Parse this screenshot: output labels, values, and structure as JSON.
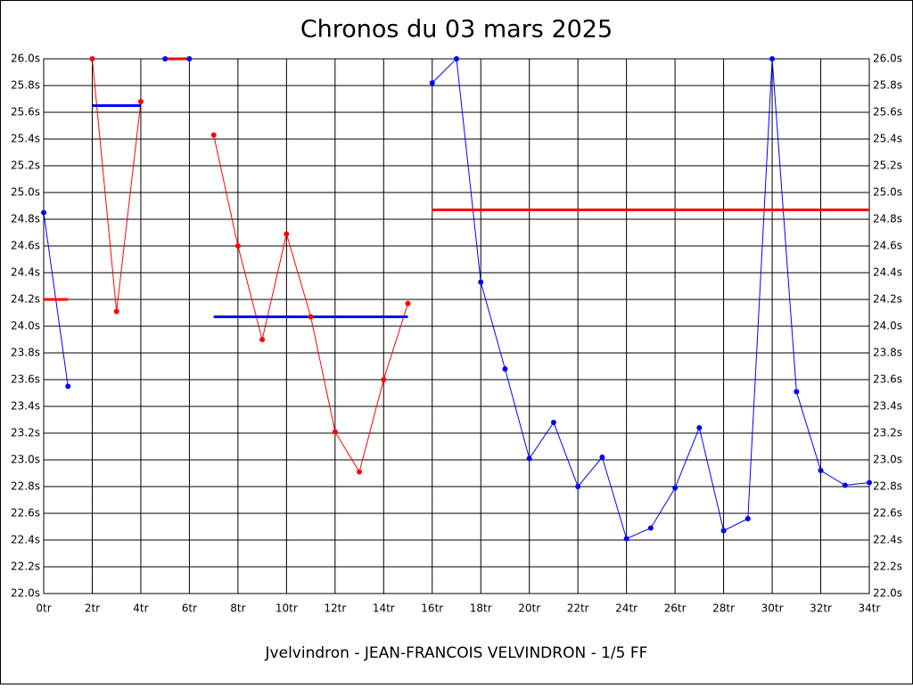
{
  "chart_data": {
    "type": "line",
    "title": "Chronos du 03 mars 2025",
    "xlabel": "Jvelvindron - JEAN-FRANCOIS VELVINDRON - 1/5 FF",
    "xlim": [
      0,
      34
    ],
    "ylim": [
      22.0,
      26.0
    ],
    "grid": true,
    "xticks": [
      {
        "value": 0,
        "label": "0tr"
      },
      {
        "value": 2,
        "label": "2tr"
      },
      {
        "value": 4,
        "label": "4tr"
      },
      {
        "value": 6,
        "label": "6tr"
      },
      {
        "value": 8,
        "label": "8tr"
      },
      {
        "value": 10,
        "label": "10tr"
      },
      {
        "value": 12,
        "label": "12tr"
      },
      {
        "value": 14,
        "label": "14tr"
      },
      {
        "value": 16,
        "label": "16tr"
      },
      {
        "value": 18,
        "label": "18tr"
      },
      {
        "value": 20,
        "label": "20tr"
      },
      {
        "value": 22,
        "label": "22tr"
      },
      {
        "value": 24,
        "label": "24tr"
      },
      {
        "value": 26,
        "label": "26tr"
      },
      {
        "value": 28,
        "label": "28tr"
      },
      {
        "value": 30,
        "label": "30tr"
      },
      {
        "value": 32,
        "label": "32tr"
      },
      {
        "value": 34,
        "label": "34tr"
      }
    ],
    "yticks": [
      {
        "value": 22.0,
        "label": "22.0s"
      },
      {
        "value": 22.2,
        "label": "22.2s"
      },
      {
        "value": 22.4,
        "label": "22.4s"
      },
      {
        "value": 22.6,
        "label": "22.6s"
      },
      {
        "value": 22.8,
        "label": "22.8s"
      },
      {
        "value": 23.0,
        "label": "23.0s"
      },
      {
        "value": 23.2,
        "label": "23.2s"
      },
      {
        "value": 23.4,
        "label": "23.4s"
      },
      {
        "value": 23.6,
        "label": "23.6s"
      },
      {
        "value": 23.8,
        "label": "23.8s"
      },
      {
        "value": 24.0,
        "label": "24.0s"
      },
      {
        "value": 24.2,
        "label": "24.2s"
      },
      {
        "value": 24.4,
        "label": "24.4s"
      },
      {
        "value": 24.6,
        "label": "24.6s"
      },
      {
        "value": 24.8,
        "label": "24.8s"
      },
      {
        "value": 25.0,
        "label": "25.0s"
      },
      {
        "value": 25.2,
        "label": "25.2s"
      },
      {
        "value": 25.4,
        "label": "25.4s"
      },
      {
        "value": 25.6,
        "label": "25.6s"
      },
      {
        "value": 25.8,
        "label": "25.8s"
      },
      {
        "value": 26.0,
        "label": "26.0s"
      }
    ],
    "series": [
      {
        "color": "#0000ff",
        "x": [
          0,
          1
        ],
        "values": [
          24.85,
          23.55
        ]
      },
      {
        "color": "#ff0000",
        "x": [
          2,
          3,
          4
        ],
        "values": [
          26.0,
          24.11,
          25.68
        ]
      },
      {
        "color": "#0000ff",
        "x": [
          5,
          6
        ],
        "values": [
          26.0,
          26.0
        ]
      },
      {
        "color": "#ff0000",
        "x": [
          7,
          8,
          9,
          10,
          11,
          12,
          13,
          14,
          15
        ],
        "values": [
          25.43,
          24.6,
          23.9,
          24.69,
          24.07,
          23.21,
          22.91,
          23.6,
          24.17
        ]
      },
      {
        "color": "#0000ff",
        "x": [
          16,
          17,
          18,
          19,
          20,
          21,
          22,
          23,
          24,
          25,
          26,
          27,
          28,
          29,
          30,
          31,
          32,
          33,
          34
        ],
        "values": [
          25.82,
          26.0,
          24.33,
          23.68,
          23.01,
          23.28,
          22.8,
          23.02,
          22.41,
          22.49,
          22.79,
          23.24,
          22.47,
          22.56,
          26.0,
          23.51,
          22.92,
          22.81,
          22.83
        ]
      }
    ],
    "mean_lines": [
      {
        "color": "#ff0000",
        "x": [
          0,
          1
        ],
        "value": 24.2
      },
      {
        "color": "#0000ff",
        "x": [
          2,
          4
        ],
        "value": 25.65
      },
      {
        "color": "#ff0000",
        "x": [
          5,
          6
        ],
        "value": 26.0
      },
      {
        "color": "#0000ff",
        "x": [
          7,
          15
        ],
        "value": 24.07
      },
      {
        "color": "#ff0000",
        "x": [
          16,
          34
        ],
        "value": 24.87
      }
    ]
  }
}
